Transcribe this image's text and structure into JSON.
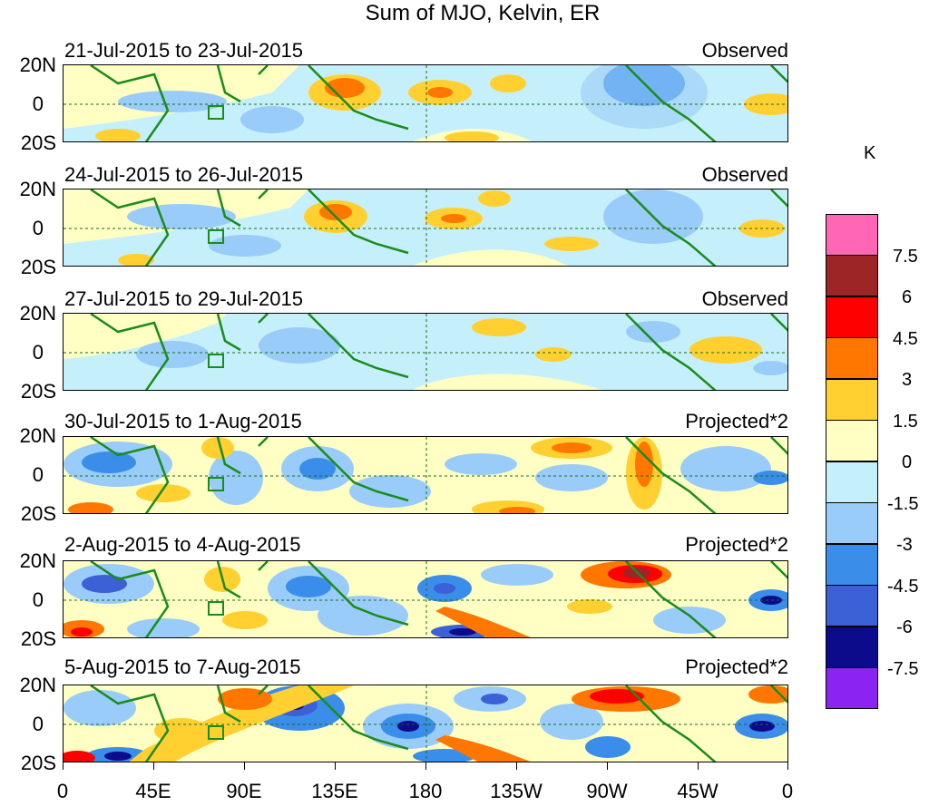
{
  "title": "Sum of MJO, Kelvin, ER",
  "colorbar": {
    "unit": "K",
    "labels": [
      "7.5",
      "6",
      "4.5",
      "3",
      "1.5",
      "0",
      "-1.5",
      "-3",
      "-4.5",
      "-6",
      "-7.5"
    ],
    "colors": [
      "#ff66b3",
      "#9e2525",
      "#ff0000",
      "#ff7700",
      "#ffd030",
      "#ffffc4",
      "#c5f0fb",
      "#99ccf8",
      "#3a8eea",
      "#3c60d6",
      "#0b0b8c",
      "#8b24f0"
    ]
  },
  "y_ticks": [
    "20N",
    "0",
    "20S"
  ],
  "x_ticks": [
    "0",
    "45E",
    "90E",
    "135E",
    "180",
    "135W",
    "90W",
    "45W",
    "0"
  ],
  "panels": [
    {
      "date": "21-Jul-2015 to 23-Jul-2015",
      "type": "Observed"
    },
    {
      "date": "24-Jul-2015 to 26-Jul-2015",
      "type": "Observed"
    },
    {
      "date": "27-Jul-2015 to 29-Jul-2015",
      "type": "Observed"
    },
    {
      "date": "30-Jul-2015 to 1-Aug-2015",
      "type": "Projected*2"
    },
    {
      "date": "2-Aug-2015 to 4-Aug-2015",
      "type": "Projected*2"
    },
    {
      "date": "5-Aug-2015 to 7-Aug-2015",
      "type": "Projected*2"
    }
  ],
  "map_colors": {
    "coast": "#1a8c1a",
    "background": "#c5f0fb"
  }
}
